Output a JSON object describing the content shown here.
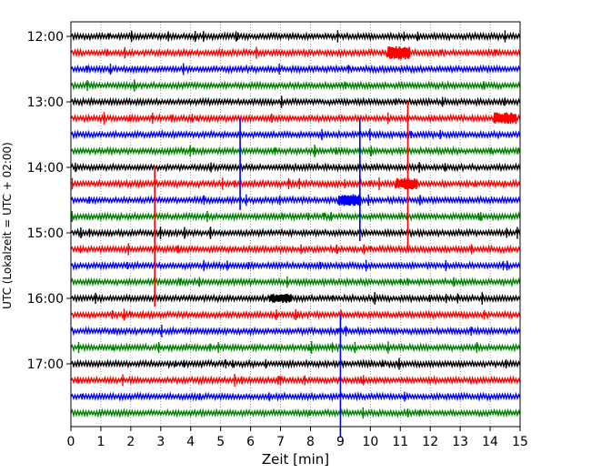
{
  "chart_data": {
    "type": "line",
    "title": "",
    "xlabel": "Zeit  [min]",
    "ylabel": "UTC (Lokalzeit = UTC + 02:00)",
    "xlim": [
      0,
      15
    ],
    "x_ticks": [
      0,
      1,
      2,
      3,
      4,
      5,
      6,
      7,
      8,
      9,
      10,
      11,
      12,
      13,
      14,
      15
    ],
    "y_tick_labels": [
      "12:00",
      "13:00",
      "14:00",
      "15:00",
      "16:00",
      "17:00"
    ],
    "grid": "vertical dotted",
    "traces": [
      {
        "start": "12:00",
        "color": "#000000"
      },
      {
        "start": "12:15",
        "color": "#ff0000"
      },
      {
        "start": "12:30",
        "color": "#0000ff"
      },
      {
        "start": "12:45",
        "color": "#008000"
      },
      {
        "start": "13:00",
        "color": "#000000"
      },
      {
        "start": "13:15",
        "color": "#ff0000"
      },
      {
        "start": "13:30",
        "color": "#0000ff"
      },
      {
        "start": "13:45",
        "color": "#008000"
      },
      {
        "start": "14:00",
        "color": "#000000"
      },
      {
        "start": "14:15",
        "color": "#ff0000"
      },
      {
        "start": "14:30",
        "color": "#0000ff"
      },
      {
        "start": "14:45",
        "color": "#008000"
      },
      {
        "start": "15:00",
        "color": "#000000"
      },
      {
        "start": "15:15",
        "color": "#ff0000"
      },
      {
        "start": "15:30",
        "color": "#0000ff"
      },
      {
        "start": "15:45",
        "color": "#008000"
      },
      {
        "start": "16:00",
        "color": "#000000"
      },
      {
        "start": "16:15",
        "color": "#ff0000"
      },
      {
        "start": "16:30",
        "color": "#0000ff"
      },
      {
        "start": "16:45",
        "color": "#008000"
      },
      {
        "start": "17:00",
        "color": "#000000"
      },
      {
        "start": "17:15",
        "color": "#ff0000"
      },
      {
        "start": "17:30",
        "color": "#0000ff"
      },
      {
        "start": "17:45",
        "color": "#008000"
      }
    ],
    "events": [
      {
        "trace": 1,
        "x": 10.95,
        "amplitude": 0.7
      },
      {
        "trace": 5,
        "x": 11.25,
        "amplitude": 8
      },
      {
        "trace": 5,
        "x": 14.5,
        "amplitude": 0.6
      },
      {
        "trace": 6,
        "x": 9.65,
        "amplitude": 6.5
      },
      {
        "trace": 6,
        "x": 5.65,
        "amplitude": 4.6
      },
      {
        "trace": 9,
        "x": 2.8,
        "amplitude": 7.5
      },
      {
        "trace": 9,
        "x": 11.2,
        "amplitude": 0.6
      },
      {
        "trace": 10,
        "x": 9.3,
        "amplitude": 0.6
      },
      {
        "trace": 16,
        "x": 7.0,
        "amplitude": 0.45
      },
      {
        "trace": 18,
        "x": 9.0,
        "amplitude": 6.5
      }
    ]
  }
}
